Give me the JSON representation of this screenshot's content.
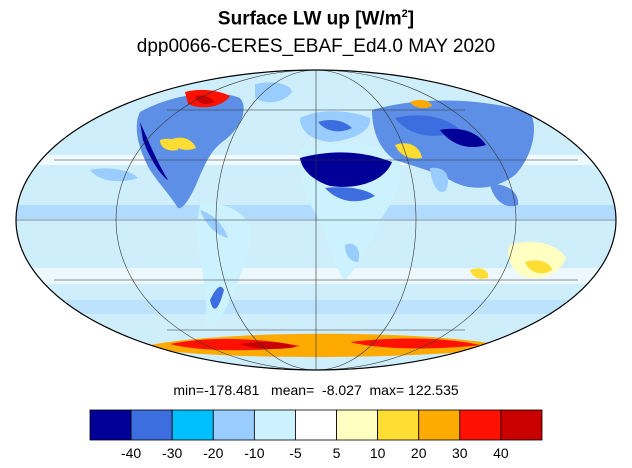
{
  "title": {
    "main": "Surface LW up [W/m",
    "sup": "2",
    "end": "]"
  },
  "subtitle": "dpp0066-CERES_EBAF_Ed4.0  MAY 2020",
  "stats": {
    "min_label": "min=",
    "min": "-178.481",
    "mean_label": "mean=",
    "mean": "-8.027",
    "max_label": "max=",
    "max": "122.535"
  },
  "colorbar": {
    "colors": [
      "#000099",
      "#3d6ee0",
      "#00bfff",
      "#99ccff",
      "#ccf2ff",
      "#ffffff",
      "#ffffc2",
      "#ffdd33",
      "#ffaa00",
      "#ff1100",
      "#c80000"
    ],
    "labels": [
      "-40",
      "-30",
      "-20",
      "-10",
      "-5",
      "5",
      "10",
      "20",
      "30",
      "40"
    ]
  },
  "map": {
    "projection": "Mollweide",
    "ocean_color": "#cfeefc",
    "graticule": true
  }
}
